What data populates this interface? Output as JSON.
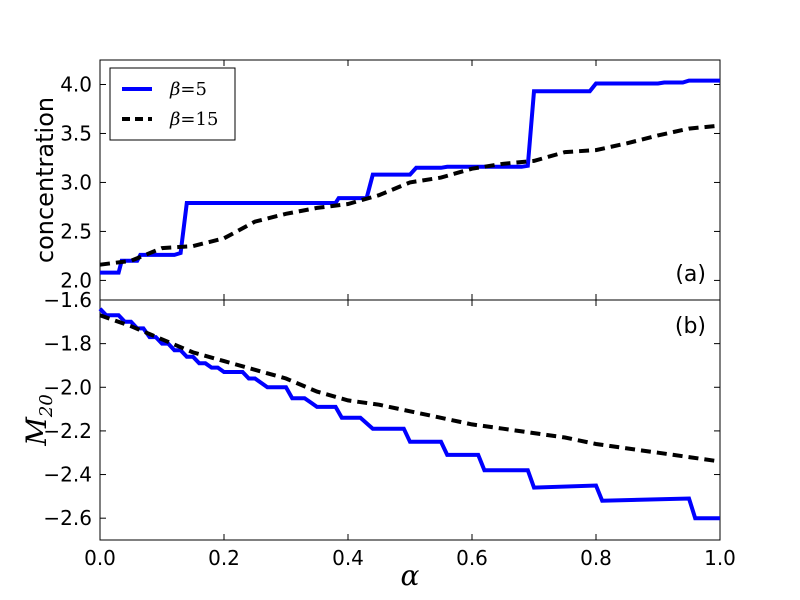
{
  "chart_data": [
    {
      "type": "line",
      "panel_label": "(a)",
      "ylabel": "concentration",
      "xlim": [
        0.0,
        1.0
      ],
      "ylim": [
        1.8,
        4.25
      ],
      "yticks": [
        "2.0",
        "2.5",
        "3.0",
        "3.5",
        "4.0"
      ],
      "ytick_values": [
        2.0,
        2.5,
        3.0,
        3.5,
        4.0
      ],
      "legend": {
        "placement": "upper-left"
      },
      "series": [
        {
          "name": "β=5",
          "legend_symbol": "β",
          "legend_rest": "=5",
          "color": "#0000ff",
          "style": "solid",
          "x": [
            0.0,
            0.03,
            0.035,
            0.06,
            0.065,
            0.12,
            0.13,
            0.14,
            0.38,
            0.385,
            0.43,
            0.44,
            0.5,
            0.51,
            0.55,
            0.56,
            0.68,
            0.69,
            0.7,
            0.79,
            0.8,
            0.9,
            0.91,
            0.94,
            0.95,
            1.0
          ],
          "values": [
            2.08,
            2.08,
            2.2,
            2.2,
            2.26,
            2.26,
            2.28,
            2.79,
            2.79,
            2.84,
            2.84,
            3.08,
            3.08,
            3.15,
            3.15,
            3.16,
            3.16,
            3.17,
            3.93,
            3.93,
            4.01,
            4.01,
            4.02,
            4.02,
            4.04,
            4.04
          ]
        },
        {
          "name": "β=15",
          "legend_symbol": "β",
          "legend_rest": "=15",
          "color": "#000000",
          "style": "dashed",
          "x": [
            0.0,
            0.05,
            0.1,
            0.15,
            0.2,
            0.25,
            0.3,
            0.35,
            0.4,
            0.45,
            0.5,
            0.55,
            0.6,
            0.65,
            0.7,
            0.75,
            0.8,
            0.85,
            0.9,
            0.95,
            1.0
          ],
          "values": [
            2.16,
            2.2,
            2.33,
            2.35,
            2.43,
            2.6,
            2.68,
            2.74,
            2.78,
            2.87,
            3.0,
            3.05,
            3.14,
            3.19,
            3.22,
            3.31,
            3.33,
            3.4,
            3.48,
            3.55,
            3.58
          ]
        }
      ]
    },
    {
      "type": "line",
      "panel_label": "(b)",
      "ylabel_symbol": "M",
      "ylabel_sub": "20",
      "xlabel": "α",
      "xlim": [
        0.0,
        1.0
      ],
      "ylim": [
        -2.7,
        -1.6
      ],
      "xticks": [
        "0.0",
        "0.2",
        "0.4",
        "0.6",
        "0.8",
        "1.0"
      ],
      "xtick_values": [
        0.0,
        0.2,
        0.4,
        0.6,
        0.8,
        1.0
      ],
      "yticks": [
        "−1.6",
        "−1.8",
        "−2.0",
        "−2.2",
        "−2.4",
        "−2.6"
      ],
      "ytick_values": [
        -1.6,
        -1.8,
        -2.0,
        -2.2,
        -2.4,
        -2.6
      ],
      "series": [
        {
          "color": "#0000ff",
          "style": "solid",
          "x": [
            0.0,
            0.01,
            0.03,
            0.04,
            0.05,
            0.06,
            0.07,
            0.08,
            0.09,
            0.1,
            0.11,
            0.12,
            0.13,
            0.14,
            0.15,
            0.16,
            0.17,
            0.18,
            0.19,
            0.2,
            0.23,
            0.24,
            0.25,
            0.26,
            0.27,
            0.3,
            0.31,
            0.33,
            0.34,
            0.35,
            0.38,
            0.39,
            0.42,
            0.44,
            0.49,
            0.5,
            0.55,
            0.56,
            0.61,
            0.62,
            0.69,
            0.7,
            0.8,
            0.81,
            0.95,
            0.96,
            1.0
          ],
          "values": [
            -1.64,
            -1.67,
            -1.67,
            -1.7,
            -1.7,
            -1.73,
            -1.73,
            -1.77,
            -1.77,
            -1.8,
            -1.8,
            -1.83,
            -1.83,
            -1.86,
            -1.86,
            -1.89,
            -1.89,
            -1.91,
            -1.91,
            -1.93,
            -1.93,
            -1.96,
            -1.96,
            -1.98,
            -2.0,
            -2.0,
            -2.05,
            -2.05,
            -2.07,
            -2.09,
            -2.09,
            -2.14,
            -2.14,
            -2.19,
            -2.19,
            -2.25,
            -2.25,
            -2.31,
            -2.31,
            -2.38,
            -2.38,
            -2.46,
            -2.45,
            -2.52,
            -2.51,
            -2.6,
            -2.6
          ]
        },
        {
          "color": "#000000",
          "style": "dashed",
          "x": [
            0.0,
            0.05,
            0.1,
            0.15,
            0.2,
            0.25,
            0.3,
            0.35,
            0.4,
            0.45,
            0.5,
            0.55,
            0.6,
            0.65,
            0.7,
            0.75,
            0.8,
            0.85,
            0.9,
            0.95,
            1.0
          ],
          "values": [
            -1.67,
            -1.72,
            -1.78,
            -1.84,
            -1.88,
            -1.92,
            -1.96,
            -2.02,
            -2.06,
            -2.08,
            -2.11,
            -2.14,
            -2.17,
            -2.19,
            -2.21,
            -2.23,
            -2.26,
            -2.28,
            -2.3,
            -2.32,
            -2.34
          ]
        }
      ]
    }
  ]
}
